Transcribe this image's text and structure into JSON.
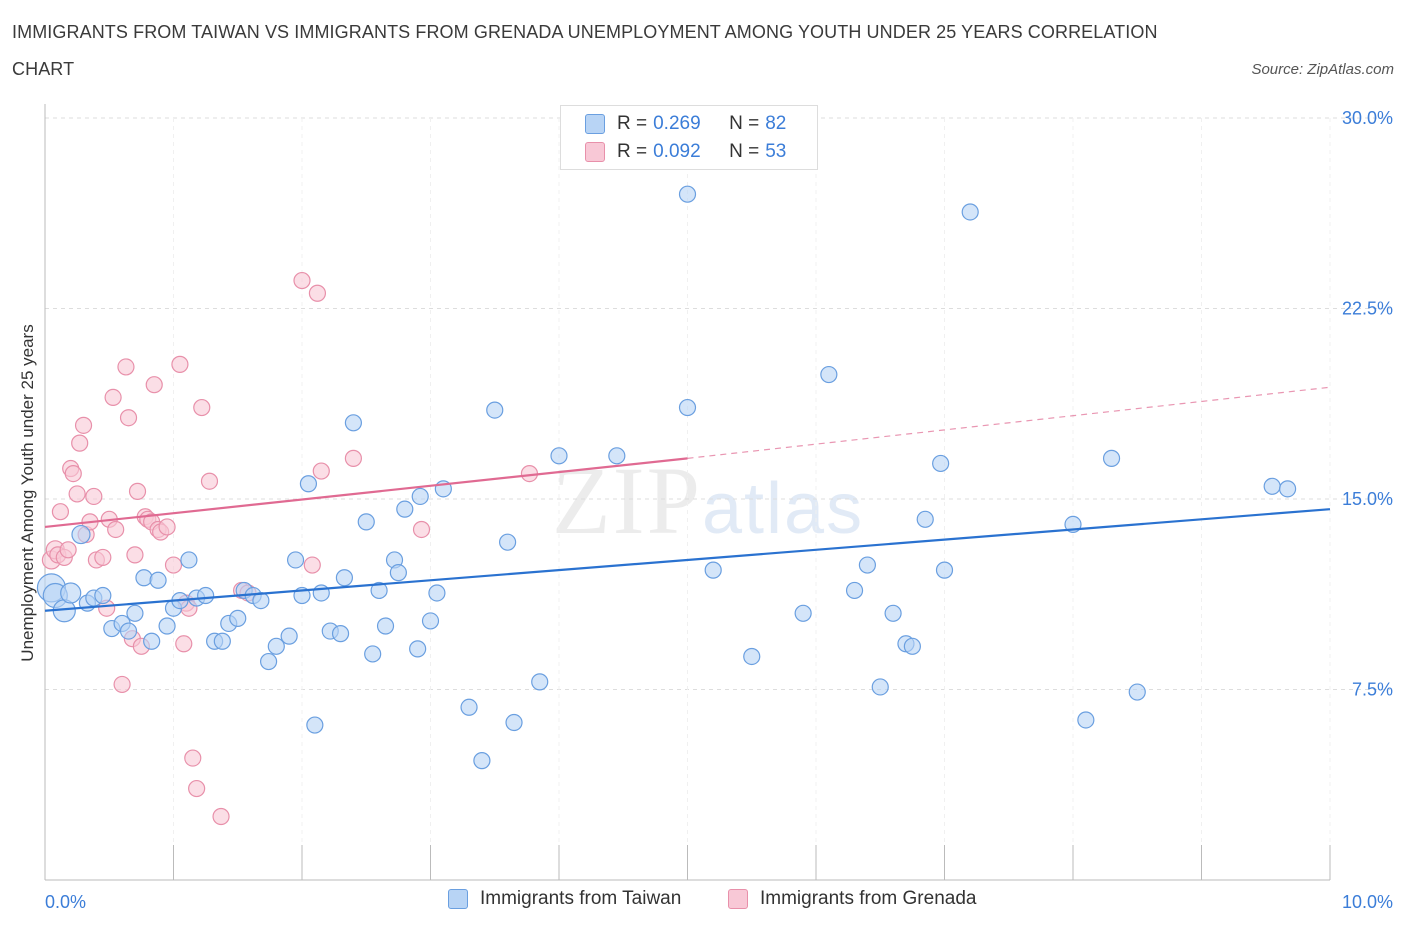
{
  "title": "IMMIGRANTS FROM TAIWAN VS IMMIGRANTS FROM GRENADA UNEMPLOYMENT AMONG YOUTH UNDER 25 YEARS CORRELATION CHART",
  "source": "Source: ZipAtlas.com",
  "watermark": {
    "zip": "ZIP",
    "atlas": "atlas"
  },
  "legend": {
    "rows": [
      {
        "r_label": "R = ",
        "r_value": "0.269",
        "n_label": "N = ",
        "n_value": "82"
      },
      {
        "r_label": "R = ",
        "r_value": "0.092",
        "n_label": "N = ",
        "n_value": "53"
      }
    ]
  },
  "colors": {
    "taiwan_fill": "#b8d4f5",
    "taiwan_stroke": "#6a9fe0",
    "taiwan_line": "#2a72d0",
    "grenada_fill": "#f8c8d6",
    "grenada_stroke": "#e890aa",
    "grenada_line": "#e06a92",
    "grid": "#dddddd",
    "axis_text": "#3b7dd8"
  },
  "chart_data": {
    "type": "scatter",
    "title": "IMMIGRANTS FROM TAIWAN VS IMMIGRANTS FROM GRENADA UNEMPLOYMENT AMONG YOUTH UNDER 25 YEARS CORRELATION CHART",
    "xlabel": "",
    "ylabel": "Unemployment Among Youth under 25 years",
    "xlim": [
      0,
      10
    ],
    "ylim": [
      0,
      30
    ],
    "x_ticks": [
      0.0,
      10.0
    ],
    "x_tick_labels": [
      "0.0%",
      "10.0%"
    ],
    "y_ticks": [
      7.5,
      15.0,
      22.5,
      30.0
    ],
    "y_tick_labels": [
      "7.5%",
      "15.0%",
      "22.5%",
      "30.0%"
    ],
    "grid": true,
    "legend_position": "top-center",
    "series": [
      {
        "name": "Immigrants from Taiwan",
        "r": 0.269,
        "n": 82,
        "trend": {
          "x": [
            0,
            10
          ],
          "y": [
            10.6,
            14.6
          ],
          "style": "solid"
        },
        "points": [
          {
            "x": 0.05,
            "y": 11.5,
            "s": 14
          },
          {
            "x": 0.08,
            "y": 11.2,
            "s": 12
          },
          {
            "x": 0.15,
            "y": 10.6,
            "s": 11
          },
          {
            "x": 0.2,
            "y": 11.3,
            "s": 10
          },
          {
            "x": 0.28,
            "y": 13.6,
            "s": 9
          },
          {
            "x": 0.33,
            "y": 10.9,
            "s": 8
          },
          {
            "x": 0.38,
            "y": 11.1,
            "s": 8
          },
          {
            "x": 0.45,
            "y": 11.2,
            "s": 8
          },
          {
            "x": 0.52,
            "y": 9.9,
            "s": 8
          },
          {
            "x": 0.6,
            "y": 10.1,
            "s": 8
          },
          {
            "x": 0.65,
            "y": 9.8,
            "s": 8
          },
          {
            "x": 0.7,
            "y": 10.5,
            "s": 8
          },
          {
            "x": 0.77,
            "y": 11.9,
            "s": 8
          },
          {
            "x": 0.83,
            "y": 9.4,
            "s": 8
          },
          {
            "x": 0.88,
            "y": 11.8,
            "s": 8
          },
          {
            "x": 0.95,
            "y": 10.0,
            "s": 8
          },
          {
            "x": 1.0,
            "y": 10.7,
            "s": 8
          },
          {
            "x": 1.05,
            "y": 11.0,
            "s": 8
          },
          {
            "x": 1.12,
            "y": 12.6,
            "s": 8
          },
          {
            "x": 1.18,
            "y": 11.1,
            "s": 8
          },
          {
            "x": 1.25,
            "y": 11.2,
            "s": 8
          },
          {
            "x": 1.32,
            "y": 9.4,
            "s": 8
          },
          {
            "x": 1.38,
            "y": 9.4,
            "s": 8
          },
          {
            "x": 1.43,
            "y": 10.1,
            "s": 8
          },
          {
            "x": 1.5,
            "y": 10.3,
            "s": 8
          },
          {
            "x": 1.55,
            "y": 11.4,
            "s": 8
          },
          {
            "x": 1.62,
            "y": 11.2,
            "s": 8
          },
          {
            "x": 1.68,
            "y": 11.0,
            "s": 8
          },
          {
            "x": 1.74,
            "y": 8.6,
            "s": 8
          },
          {
            "x": 1.8,
            "y": 9.2,
            "s": 8
          },
          {
            "x": 1.9,
            "y": 9.6,
            "s": 8
          },
          {
            "x": 1.95,
            "y": 12.6,
            "s": 8
          },
          {
            "x": 2.0,
            "y": 11.2,
            "s": 8
          },
          {
            "x": 2.05,
            "y": 15.6,
            "s": 8
          },
          {
            "x": 2.1,
            "y": 6.1,
            "s": 8
          },
          {
            "x": 2.15,
            "y": 11.3,
            "s": 8
          },
          {
            "x": 2.22,
            "y": 9.8,
            "s": 8
          },
          {
            "x": 2.3,
            "y": 9.7,
            "s": 8
          },
          {
            "x": 2.33,
            "y": 11.9,
            "s": 8
          },
          {
            "x": 2.4,
            "y": 18.0,
            "s": 8
          },
          {
            "x": 2.5,
            "y": 14.1,
            "s": 8
          },
          {
            "x": 2.55,
            "y": 8.9,
            "s": 8
          },
          {
            "x": 2.6,
            "y": 11.4,
            "s": 8
          },
          {
            "x": 2.65,
            "y": 10.0,
            "s": 8
          },
          {
            "x": 2.72,
            "y": 12.6,
            "s": 8
          },
          {
            "x": 2.75,
            "y": 12.1,
            "s": 8
          },
          {
            "x": 2.8,
            "y": 14.6,
            "s": 8
          },
          {
            "x": 2.9,
            "y": 9.1,
            "s": 8
          },
          {
            "x": 2.92,
            "y": 15.1,
            "s": 8
          },
          {
            "x": 3.0,
            "y": 10.2,
            "s": 8
          },
          {
            "x": 3.05,
            "y": 11.3,
            "s": 8
          },
          {
            "x": 3.1,
            "y": 15.4,
            "s": 8
          },
          {
            "x": 3.3,
            "y": 6.8,
            "s": 8
          },
          {
            "x": 3.4,
            "y": 4.7,
            "s": 8
          },
          {
            "x": 3.5,
            "y": 18.5,
            "s": 8
          },
          {
            "x": 3.6,
            "y": 13.3,
            "s": 8
          },
          {
            "x": 3.65,
            "y": 6.2,
            "s": 8
          },
          {
            "x": 3.85,
            "y": 7.8,
            "s": 8
          },
          {
            "x": 4.0,
            "y": 16.7,
            "s": 8
          },
          {
            "x": 4.45,
            "y": 16.7,
            "s": 8
          },
          {
            "x": 5.0,
            "y": 27.0,
            "s": 8
          },
          {
            "x": 5.0,
            "y": 18.6,
            "s": 8
          },
          {
            "x": 5.2,
            "y": 12.2,
            "s": 8
          },
          {
            "x": 5.5,
            "y": 8.8,
            "s": 8
          },
          {
            "x": 5.9,
            "y": 10.5,
            "s": 8
          },
          {
            "x": 6.1,
            "y": 19.9,
            "s": 8
          },
          {
            "x": 6.3,
            "y": 11.4,
            "s": 8
          },
          {
            "x": 6.4,
            "y": 12.4,
            "s": 8
          },
          {
            "x": 6.5,
            "y": 7.6,
            "s": 8
          },
          {
            "x": 6.6,
            "y": 10.5,
            "s": 8
          },
          {
            "x": 6.7,
            "y": 9.3,
            "s": 8
          },
          {
            "x": 6.75,
            "y": 9.2,
            "s": 8
          },
          {
            "x": 6.85,
            "y": 14.2,
            "s": 8
          },
          {
            "x": 6.97,
            "y": 16.4,
            "s": 8
          },
          {
            "x": 7.0,
            "y": 12.2,
            "s": 8
          },
          {
            "x": 7.2,
            "y": 26.3,
            "s": 8
          },
          {
            "x": 8.0,
            "y": 14.0,
            "s": 8
          },
          {
            "x": 8.1,
            "y": 6.3,
            "s": 8
          },
          {
            "x": 8.3,
            "y": 16.6,
            "s": 8
          },
          {
            "x": 8.5,
            "y": 7.4,
            "s": 8
          },
          {
            "x": 9.55,
            "y": 15.5,
            "s": 8
          },
          {
            "x": 9.67,
            "y": 15.4,
            "s": 8
          }
        ]
      },
      {
        "name": "Immigrants from Grenada",
        "r": 0.092,
        "n": 53,
        "trend": {
          "x": [
            0,
            5.0,
            10
          ],
          "y": [
            13.9,
            16.6,
            19.4
          ],
          "style": "solid-then-dashed"
        },
        "points": [
          {
            "x": 0.05,
            "y": 12.6,
            "s": 9
          },
          {
            "x": 0.08,
            "y": 13.0,
            "s": 9
          },
          {
            "x": 0.1,
            "y": 12.8,
            "s": 8
          },
          {
            "x": 0.12,
            "y": 14.5,
            "s": 8
          },
          {
            "x": 0.15,
            "y": 12.7,
            "s": 8
          },
          {
            "x": 0.18,
            "y": 13.0,
            "s": 8
          },
          {
            "x": 0.2,
            "y": 16.2,
            "s": 8
          },
          {
            "x": 0.22,
            "y": 16.0,
            "s": 8
          },
          {
            "x": 0.25,
            "y": 15.2,
            "s": 8
          },
          {
            "x": 0.27,
            "y": 17.2,
            "s": 8
          },
          {
            "x": 0.3,
            "y": 17.9,
            "s": 8
          },
          {
            "x": 0.32,
            "y": 13.6,
            "s": 8
          },
          {
            "x": 0.35,
            "y": 14.1,
            "s": 8
          },
          {
            "x": 0.38,
            "y": 15.1,
            "s": 8
          },
          {
            "x": 0.4,
            "y": 12.6,
            "s": 8
          },
          {
            "x": 0.45,
            "y": 12.7,
            "s": 8
          },
          {
            "x": 0.48,
            "y": 10.7,
            "s": 8
          },
          {
            "x": 0.5,
            "y": 14.2,
            "s": 8
          },
          {
            "x": 0.53,
            "y": 19.0,
            "s": 8
          },
          {
            "x": 0.55,
            "y": 13.8,
            "s": 8
          },
          {
            "x": 0.6,
            "y": 7.7,
            "s": 8
          },
          {
            "x": 0.63,
            "y": 20.2,
            "s": 8
          },
          {
            "x": 0.65,
            "y": 18.2,
            "s": 8
          },
          {
            "x": 0.68,
            "y": 9.5,
            "s": 8
          },
          {
            "x": 0.7,
            "y": 12.8,
            "s": 8
          },
          {
            "x": 0.72,
            "y": 15.3,
            "s": 8
          },
          {
            "x": 0.75,
            "y": 9.2,
            "s": 8
          },
          {
            "x": 0.78,
            "y": 14.3,
            "s": 8
          },
          {
            "x": 0.8,
            "y": 14.2,
            "s": 8
          },
          {
            "x": 0.83,
            "y": 14.1,
            "s": 8
          },
          {
            "x": 0.85,
            "y": 19.5,
            "s": 8
          },
          {
            "x": 0.88,
            "y": 13.8,
            "s": 8
          },
          {
            "x": 0.9,
            "y": 13.7,
            "s": 8
          },
          {
            "x": 0.95,
            "y": 13.9,
            "s": 8
          },
          {
            "x": 1.0,
            "y": 12.4,
            "s": 8
          },
          {
            "x": 1.05,
            "y": 20.3,
            "s": 8
          },
          {
            "x": 1.08,
            "y": 9.3,
            "s": 8
          },
          {
            "x": 1.1,
            "y": 10.9,
            "s": 8
          },
          {
            "x": 1.12,
            "y": 10.7,
            "s": 8
          },
          {
            "x": 1.15,
            "y": 4.8,
            "s": 8
          },
          {
            "x": 1.18,
            "y": 3.6,
            "s": 8
          },
          {
            "x": 1.22,
            "y": 18.6,
            "s": 8
          },
          {
            "x": 1.28,
            "y": 15.7,
            "s": 8
          },
          {
            "x": 1.37,
            "y": 2.5,
            "s": 8
          },
          {
            "x": 1.53,
            "y": 11.4,
            "s": 8
          },
          {
            "x": 1.58,
            "y": 11.3,
            "s": 8
          },
          {
            "x": 2.0,
            "y": 23.6,
            "s": 8
          },
          {
            "x": 2.08,
            "y": 12.4,
            "s": 8
          },
          {
            "x": 2.12,
            "y": 23.1,
            "s": 8
          },
          {
            "x": 2.15,
            "y": 16.1,
            "s": 8
          },
          {
            "x": 2.4,
            "y": 16.6,
            "s": 8
          },
          {
            "x": 2.93,
            "y": 13.8,
            "s": 8
          },
          {
            "x": 3.77,
            "y": 16.0,
            "s": 8
          }
        ]
      }
    ]
  },
  "bottom_legend": [
    {
      "label": "Immigrants from Taiwan"
    },
    {
      "label": "Immigrants from Grenada"
    }
  ]
}
